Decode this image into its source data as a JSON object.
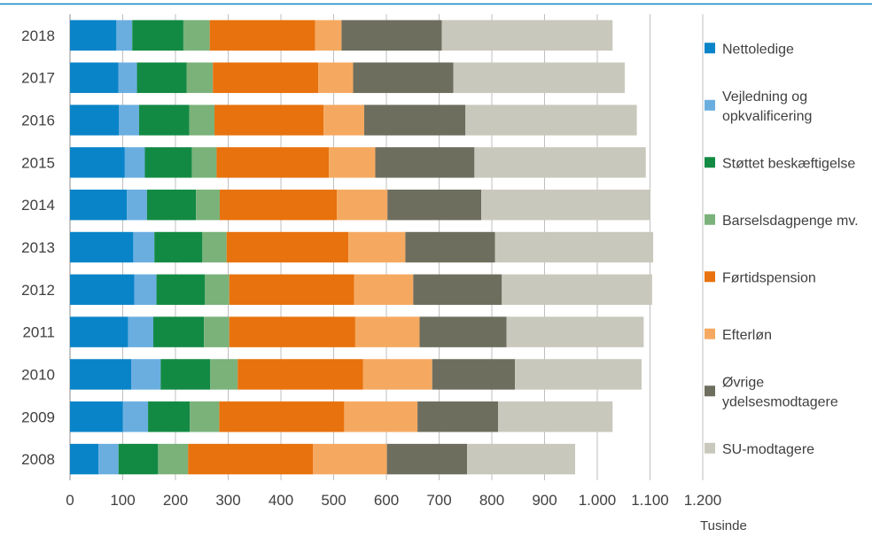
{
  "chart_data": {
    "type": "bar",
    "orientation": "horizontal",
    "stacked": true,
    "categories": [
      "2018",
      "2017",
      "2016",
      "2015",
      "2014",
      "2013",
      "2012",
      "2011",
      "2010",
      "2009",
      "2008"
    ],
    "series": [
      {
        "name": "Nettoledige",
        "color": "#0a84c8",
        "values": [
          88,
          92,
          93,
          104,
          108,
          120,
          122,
          110,
          116,
          100,
          54
        ]
      },
      {
        "name": "Vejledning og opkvalificering",
        "color": "#6aaee0",
        "values": [
          30,
          35,
          38,
          38,
          38,
          40,
          42,
          48,
          56,
          48,
          38
        ]
      },
      {
        "name": "Støttet beskæftigelse",
        "color": "#138a44",
        "values": [
          97,
          94,
          95,
          89,
          93,
          91,
          92,
          96,
          94,
          79,
          75
        ]
      },
      {
        "name": "Barselsdagpenge mv.",
        "color": "#7ab27a",
        "values": [
          50,
          50,
          48,
          47,
          45,
          46,
          46,
          48,
          52,
          56,
          57
        ]
      },
      {
        "name": "Førtidspension",
        "color": "#e8720d",
        "values": [
          200,
          200,
          207,
          213,
          222,
          231,
          237,
          239,
          238,
          237,
          237
        ]
      },
      {
        "name": "Efterløn",
        "color": "#f5a960",
        "values": [
          50,
          66,
          77,
          88,
          96,
          108,
          112,
          122,
          131,
          139,
          140
        ]
      },
      {
        "name": "Øvrige ydelsesmodtagere",
        "color": "#6e6e5e",
        "values": [
          190,
          190,
          192,
          188,
          178,
          170,
          168,
          165,
          157,
          153,
          152
        ]
      },
      {
        "name": "SU-modtagere",
        "color": "#c9c8bc",
        "values": [
          324,
          325,
          325,
          325,
          320,
          300,
          285,
          260,
          240,
          217,
          205
        ]
      }
    ],
    "xlim": [
      0,
      1200
    ],
    "x_ticks": [
      "0",
      "100",
      "200",
      "300",
      "400",
      "500",
      "600",
      "700",
      "800",
      "900",
      "1.000",
      "1.100",
      "1.200"
    ],
    "x_tick_values": [
      0,
      100,
      200,
      300,
      400,
      500,
      600,
      700,
      800,
      900,
      1000,
      1100,
      1200
    ],
    "xlabel": "Tusinde",
    "grid": "vertical",
    "legend": "right"
  }
}
